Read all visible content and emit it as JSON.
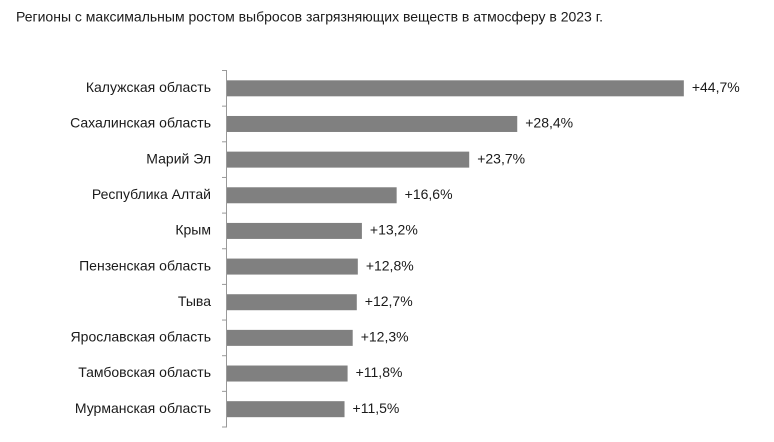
{
  "chart_data": {
    "type": "barh",
    "title": "Регионы с максимальным ростом выбросов загрязняющих веществ в атмосферу в 2023 г.",
    "categories": [
      "Калужская область",
      "Сахалинская область",
      "Марий Эл",
      "Республика Алтай",
      "Крым",
      "Пензенская область",
      "Тыва",
      "Ярославская область",
      "Тамбовская область",
      "Мурманская область"
    ],
    "values": [
      44.7,
      28.4,
      23.7,
      16.6,
      13.2,
      12.8,
      12.7,
      12.3,
      11.8,
      11.5
    ],
    "value_labels": [
      "+44,7%",
      "+28,4%",
      "+23,7%",
      "+16,6%",
      "+13,2%",
      "+12,8%",
      "+12,7%",
      "+12,3%",
      "+11,8%",
      "+11,5%"
    ],
    "color": "#808080"
  }
}
